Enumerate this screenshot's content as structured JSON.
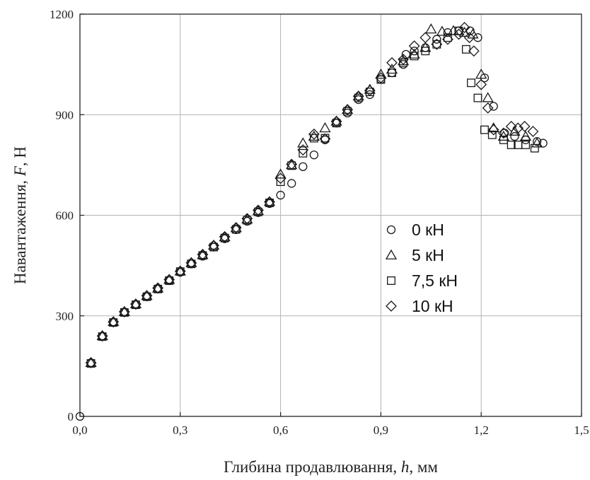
{
  "chart_data": {
    "type": "scatter",
    "xlabel": "Глибина продавлювання, h, мм",
    "ylabel": "Навантаження, F, Н",
    "xlabel_parts": [
      {
        "text": "Глибина продавлювання, ",
        "italic": false
      },
      {
        "text": "h",
        "italic": true
      },
      {
        "text": ", мм",
        "italic": false
      }
    ],
    "ylabel_parts": [
      {
        "text": "Навантаження, ",
        "italic": false
      },
      {
        "text": "F",
        "italic": true
      },
      {
        "text": ", Н",
        "italic": false
      }
    ],
    "xlim": [
      0,
      1.5
    ],
    "ylim": [
      0,
      1200
    ],
    "x_ticks": [
      {
        "value": 0,
        "label": "0,0"
      },
      {
        "value": 0.3,
        "label": "0,3"
      },
      {
        "value": 0.6,
        "label": "0,6"
      },
      {
        "value": 0.9,
        "label": "0,9"
      },
      {
        "value": 1.2,
        "label": "1,2"
      },
      {
        "value": 1.5,
        "label": "1,5"
      }
    ],
    "y_ticks": [
      {
        "value": 0,
        "label": "0"
      },
      {
        "value": 300,
        "label": "300"
      },
      {
        "value": 600,
        "label": "600"
      },
      {
        "value": 900,
        "label": "900"
      },
      {
        "value": 1200,
        "label": "1200"
      }
    ],
    "grid": true,
    "legend_position": "right-center",
    "series": [
      {
        "name": "0 кН",
        "marker": "circle",
        "points": [
          [
            0.0,
            0
          ],
          [
            0.033,
            160
          ],
          [
            0.067,
            238
          ],
          [
            0.1,
            280
          ],
          [
            0.133,
            310
          ],
          [
            0.167,
            333
          ],
          [
            0.2,
            357
          ],
          [
            0.233,
            380
          ],
          [
            0.267,
            405
          ],
          [
            0.3,
            430
          ],
          [
            0.333,
            455
          ],
          [
            0.367,
            478
          ],
          [
            0.4,
            505
          ],
          [
            0.433,
            530
          ],
          [
            0.467,
            557
          ],
          [
            0.5,
            582
          ],
          [
            0.533,
            608
          ],
          [
            0.567,
            635
          ],
          [
            0.6,
            660
          ],
          [
            0.633,
            695
          ],
          [
            0.667,
            745
          ],
          [
            0.7,
            780
          ],
          [
            0.733,
            825
          ],
          [
            0.767,
            875
          ],
          [
            0.8,
            905
          ],
          [
            0.833,
            945
          ],
          [
            0.867,
            960
          ],
          [
            0.9,
            1005
          ],
          [
            0.933,
            1025
          ],
          [
            0.967,
            1050
          ],
          [
            0.975,
            1080
          ],
          [
            1.0,
            1090
          ],
          [
            1.033,
            1100
          ],
          [
            1.067,
            1125
          ],
          [
            1.1,
            1145
          ],
          [
            1.133,
            1150
          ],
          [
            1.167,
            1150
          ],
          [
            1.19,
            1130
          ],
          [
            1.21,
            1010
          ],
          [
            1.237,
            925
          ],
          [
            1.27,
            845
          ],
          [
            1.3,
            835
          ],
          [
            1.333,
            825
          ],
          [
            1.367,
            820
          ],
          [
            1.385,
            815
          ]
        ]
      },
      {
        "name": "5 кН",
        "marker": "triangle",
        "points": [
          [
            0.033,
            160
          ],
          [
            0.067,
            240
          ],
          [
            0.1,
            282
          ],
          [
            0.133,
            312
          ],
          [
            0.167,
            335
          ],
          [
            0.2,
            360
          ],
          [
            0.233,
            382
          ],
          [
            0.267,
            408
          ],
          [
            0.3,
            433
          ],
          [
            0.333,
            458
          ],
          [
            0.367,
            482
          ],
          [
            0.4,
            510
          ],
          [
            0.433,
            535
          ],
          [
            0.467,
            562
          ],
          [
            0.5,
            588
          ],
          [
            0.533,
            613
          ],
          [
            0.567,
            640
          ],
          [
            0.6,
            722
          ],
          [
            0.633,
            750
          ],
          [
            0.667,
            815
          ],
          [
            0.7,
            835
          ],
          [
            0.733,
            860
          ],
          [
            0.767,
            880
          ],
          [
            0.8,
            915
          ],
          [
            0.833,
            955
          ],
          [
            0.867,
            975
          ],
          [
            0.9,
            1020
          ],
          [
            0.933,
            1035
          ],
          [
            0.967,
            1060
          ],
          [
            1.0,
            1080
          ],
          [
            1.033,
            1100
          ],
          [
            1.05,
            1155
          ],
          [
            1.083,
            1148
          ],
          [
            1.117,
            1150
          ],
          [
            1.15,
            1145
          ],
          [
            1.175,
            1140
          ],
          [
            1.2,
            1020
          ],
          [
            1.22,
            950
          ],
          [
            1.237,
            860
          ],
          [
            1.267,
            835
          ],
          [
            1.3,
            850
          ],
          [
            1.333,
            835
          ],
          [
            1.367,
            815
          ]
        ]
      },
      {
        "name": "7,5 кН",
        "marker": "square",
        "points": [
          [
            0.033,
            158
          ],
          [
            0.067,
            238
          ],
          [
            0.1,
            280
          ],
          [
            0.133,
            310
          ],
          [
            0.167,
            333
          ],
          [
            0.2,
            357
          ],
          [
            0.233,
            380
          ],
          [
            0.267,
            405
          ],
          [
            0.3,
            432
          ],
          [
            0.333,
            455
          ],
          [
            0.367,
            480
          ],
          [
            0.4,
            505
          ],
          [
            0.433,
            532
          ],
          [
            0.467,
            558
          ],
          [
            0.5,
            585
          ],
          [
            0.533,
            610
          ],
          [
            0.567,
            637
          ],
          [
            0.6,
            700
          ],
          [
            0.633,
            748
          ],
          [
            0.667,
            785
          ],
          [
            0.7,
            830
          ],
          [
            0.733,
            830
          ],
          [
            0.767,
            875
          ],
          [
            0.8,
            910
          ],
          [
            0.833,
            950
          ],
          [
            0.867,
            968
          ],
          [
            0.9,
            1005
          ],
          [
            0.933,
            1025
          ],
          [
            0.967,
            1055
          ],
          [
            1.0,
            1075
          ],
          [
            1.033,
            1090
          ],
          [
            1.067,
            1110
          ],
          [
            1.1,
            1130
          ],
          [
            1.133,
            1150
          ],
          [
            1.155,
            1095
          ],
          [
            1.17,
            995
          ],
          [
            1.19,
            950
          ],
          [
            1.21,
            855
          ],
          [
            1.233,
            840
          ],
          [
            1.267,
            825
          ],
          [
            1.29,
            810
          ],
          [
            1.31,
            810
          ],
          [
            1.333,
            810
          ],
          [
            1.36,
            800
          ]
        ]
      },
      {
        "name": "10 кН",
        "marker": "diamond",
        "points": [
          [
            0.033,
            160
          ],
          [
            0.067,
            240
          ],
          [
            0.1,
            282
          ],
          [
            0.133,
            312
          ],
          [
            0.167,
            335
          ],
          [
            0.2,
            360
          ],
          [
            0.233,
            383
          ],
          [
            0.267,
            408
          ],
          [
            0.3,
            433
          ],
          [
            0.333,
            458
          ],
          [
            0.367,
            483
          ],
          [
            0.4,
            510
          ],
          [
            0.433,
            536
          ],
          [
            0.467,
            563
          ],
          [
            0.5,
            590
          ],
          [
            0.533,
            615
          ],
          [
            0.567,
            640
          ],
          [
            0.6,
            710
          ],
          [
            0.633,
            752
          ],
          [
            0.667,
            795
          ],
          [
            0.7,
            842
          ],
          [
            0.733,
            828
          ],
          [
            0.767,
            880
          ],
          [
            0.8,
            915
          ],
          [
            0.833,
            955
          ],
          [
            0.867,
            972
          ],
          [
            0.9,
            1010
          ],
          [
            0.933,
            1055
          ],
          [
            0.967,
            1065
          ],
          [
            1.0,
            1105
          ],
          [
            1.033,
            1130
          ],
          [
            1.067,
            1110
          ],
          [
            1.1,
            1125
          ],
          [
            1.133,
            1140
          ],
          [
            1.15,
            1160
          ],
          [
            1.165,
            1130
          ],
          [
            1.178,
            1090
          ],
          [
            1.2,
            990
          ],
          [
            1.22,
            920
          ],
          [
            1.237,
            855
          ],
          [
            1.267,
            845
          ],
          [
            1.29,
            865
          ],
          [
            1.31,
            860
          ],
          [
            1.33,
            865
          ],
          [
            1.355,
            850
          ]
        ]
      }
    ]
  }
}
